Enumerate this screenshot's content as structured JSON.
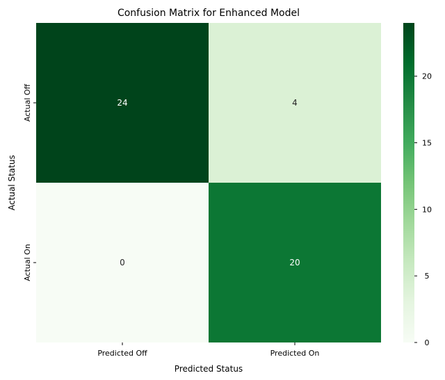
{
  "chart_data": {
    "type": "heatmap",
    "title": "Confusion Matrix for Enhanced Model",
    "xlabel": "Predicted Status",
    "ylabel": "Actual Status",
    "x_categories": [
      "Predicted Off",
      "Predicted On"
    ],
    "y_categories": [
      "Actual Off",
      "Actual On"
    ],
    "values": [
      [
        24,
        4
      ],
      [
        0,
        20
      ]
    ],
    "colormap": "Greens",
    "color_low": "#f7fcf5",
    "color_high": "#00441b",
    "colorbar": {
      "range": [
        0,
        24
      ],
      "ticks": [
        0,
        5,
        10,
        15,
        20
      ]
    },
    "grid": false,
    "legend": "colorbar-right"
  }
}
